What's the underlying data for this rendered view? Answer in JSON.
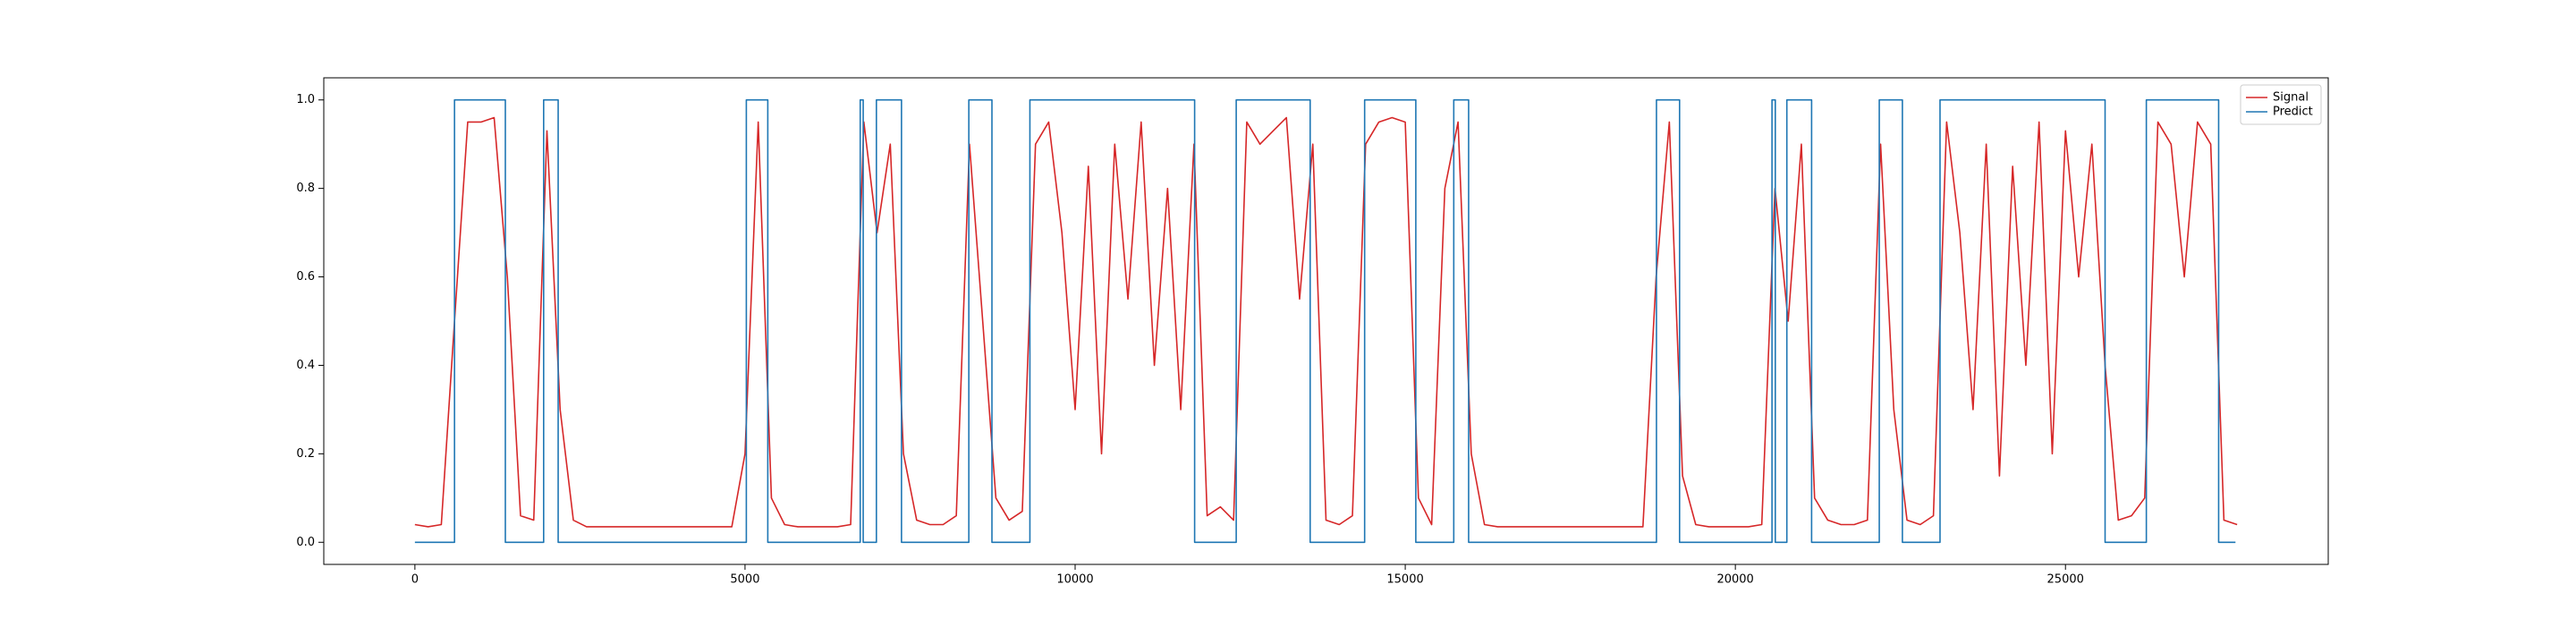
{
  "chart_data": {
    "type": "line",
    "xlim": [
      -1380,
      28980
    ],
    "ylim": [
      -0.05,
      1.05
    ],
    "xticks": [
      0,
      5000,
      10000,
      15000,
      20000,
      25000
    ],
    "yticks": [
      {
        "value": 0,
        "label": "0.0"
      },
      {
        "value": 0.2,
        "label": "0.2"
      },
      {
        "value": 0.4,
        "label": "0.4"
      },
      {
        "value": 0.6,
        "label": "0.6"
      },
      {
        "value": 0.8,
        "label": "0.8"
      },
      {
        "value": 1,
        "label": "1.0"
      }
    ],
    "grid": false,
    "legend": "upper right",
    "series": [
      {
        "name": "Signal",
        "color": "#d62728",
        "x": [
          0,
          200,
          400,
          600,
          800,
          1000,
          1200,
          1400,
          1600,
          1800,
          2000,
          2200,
          2400,
          2600,
          2800,
          3000,
          3200,
          3400,
          3600,
          3800,
          4000,
          4200,
          4400,
          4600,
          4800,
          5000,
          5200,
          5400,
          5600,
          5800,
          6000,
          6200,
          6400,
          6600,
          6800,
          7000,
          7200,
          7400,
          7600,
          7800,
          8000,
          8200,
          8400,
          8600,
          8800,
          9000,
          9200,
          9400,
          9600,
          9800,
          10000,
          10200,
          10400,
          10600,
          10800,
          11000,
          11200,
          11400,
          11600,
          11800,
          12000,
          12200,
          12400,
          12600,
          12800,
          13000,
          13200,
          13400,
          13600,
          13800,
          14000,
          14200,
          14400,
          14600,
          14800,
          15000,
          15200,
          15400,
          15600,
          15800,
          16000,
          16200,
          16400,
          16600,
          16800,
          17000,
          17200,
          17400,
          17600,
          17800,
          18000,
          18200,
          18400,
          18600,
          18800,
          19000,
          19200,
          19400,
          19600,
          19800,
          20000,
          20200,
          20400,
          20600,
          20800,
          21000,
          21200,
          21400,
          21600,
          21800,
          22000,
          22200,
          22400,
          22600,
          22800,
          23000,
          23200,
          23400,
          23600,
          23800,
          24000,
          24200,
          24400,
          24600,
          24800,
          25000,
          25200,
          25400,
          25600,
          25800,
          26000,
          26200,
          26400,
          26600,
          26800,
          27000,
          27200,
          27400,
          27600
        ],
        "values": [
          0.04,
          0.035,
          0.04,
          0.5,
          0.95,
          0.95,
          0.96,
          0.6,
          0.06,
          0.05,
          0.93,
          0.3,
          0.05,
          0.035,
          0.035,
          0.035,
          0.035,
          0.035,
          0.035,
          0.035,
          0.035,
          0.035,
          0.035,
          0.035,
          0.035,
          0.2,
          0.95,
          0.1,
          0.04,
          0.035,
          0.035,
          0.035,
          0.035,
          0.04,
          0.95,
          0.7,
          0.9,
          0.2,
          0.05,
          0.04,
          0.04,
          0.06,
          0.9,
          0.5,
          0.1,
          0.05,
          0.07,
          0.9,
          0.95,
          0.7,
          0.3,
          0.85,
          0.2,
          0.9,
          0.55,
          0.95,
          0.4,
          0.8,
          0.3,
          0.9,
          0.06,
          0.08,
          0.05,
          0.95,
          0.9,
          0.93,
          0.96,
          0.55,
          0.9,
          0.05,
          0.04,
          0.06,
          0.9,
          0.95,
          0.96,
          0.95,
          0.1,
          0.04,
          0.8,
          0.95,
          0.2,
          0.04,
          0.035,
          0.035,
          0.035,
          0.035,
          0.035,
          0.035,
          0.035,
          0.035,
          0.035,
          0.035,
          0.035,
          0.035,
          0.6,
          0.95,
          0.15,
          0.04,
          0.035,
          0.035,
          0.035,
          0.035,
          0.04,
          0.8,
          0.5,
          0.9,
          0.1,
          0.05,
          0.04,
          0.04,
          0.05,
          0.9,
          0.3,
          0.05,
          0.04,
          0.06,
          0.95,
          0.7,
          0.3,
          0.9,
          0.15,
          0.85,
          0.4,
          0.95,
          0.2,
          0.93,
          0.6,
          0.9,
          0.4,
          0.05,
          0.06,
          0.1,
          0.95,
          0.9,
          0.6,
          0.95,
          0.9,
          0.05,
          0.04
        ]
      },
      {
        "name": "Predict",
        "color": "#1f77b4",
        "x": [
          0,
          600,
          600,
          1370,
          1370,
          1950,
          1950,
          2170,
          2170,
          5020,
          5020,
          5345,
          5345,
          6745,
          6745,
          6790,
          6790,
          6990,
          6990,
          7370,
          7370,
          8390,
          8390,
          8740,
          8740,
          9315,
          9315,
          11810,
          11810,
          12440,
          12440,
          13560,
          13560,
          14385,
          14385,
          15160,
          15160,
          15735,
          15735,
          15960,
          15960,
          18805,
          18805,
          19155,
          19155,
          20555,
          20555,
          20605,
          20605,
          20780,
          20780,
          21155,
          21155,
          22180,
          22180,
          22530,
          22530,
          23100,
          23100,
          25600,
          25600,
          26225,
          26225,
          27320,
          27320,
          27575
        ],
        "values": [
          0,
          0,
          1,
          1,
          0,
          0,
          1,
          1,
          0,
          0,
          1,
          1,
          0,
          0,
          1,
          1,
          0,
          0,
          1,
          1,
          0,
          0,
          1,
          1,
          0,
          0,
          1,
          1,
          0,
          0,
          1,
          1,
          0,
          0,
          1,
          1,
          0,
          0,
          1,
          1,
          0,
          0,
          1,
          1,
          0,
          0,
          1,
          1,
          0,
          0,
          1,
          1,
          0,
          0,
          1,
          1,
          0,
          0,
          1,
          1,
          0,
          0,
          1,
          1,
          0,
          0
        ]
      }
    ]
  }
}
